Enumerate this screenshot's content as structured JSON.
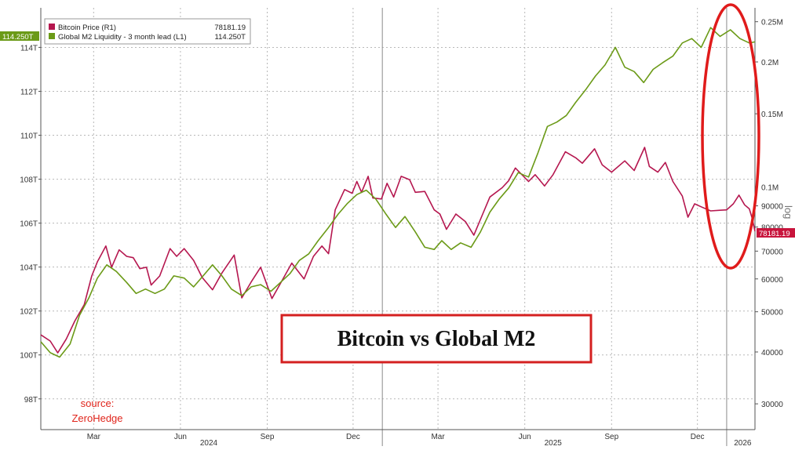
{
  "chart_data": {
    "type": "line",
    "title": "Bitcoin vs Global M2",
    "source_label": "source:",
    "source_name": "ZeroHedge",
    "y_axis_log_label": "log",
    "legend_placement": "top-left",
    "grid": true,
    "left_axis": {
      "ylim": [
        96.6,
        115.8
      ],
      "ticks": [
        "98T",
        "100T",
        "102T",
        "104T",
        "106T",
        "108T",
        "110T",
        "112T",
        "114T"
      ],
      "tick_values": [
        98,
        100,
        102,
        104,
        106,
        108,
        110,
        112,
        114
      ]
    },
    "right_axis": {
      "scale": "log",
      "ylim": [
        26000,
        270000
      ],
      "ticks": [
        "30000",
        "40000",
        "50000",
        "60000",
        "70000",
        "80000",
        "90000",
        "0.1M",
        "0.15M",
        "0.2M",
        "0.25M"
      ],
      "tick_values": [
        30000,
        40000,
        50000,
        60000,
        70000,
        80000,
        90000,
        100000,
        150000,
        200000,
        250000
      ]
    },
    "x_axis": {
      "range": [
        "2024-01-05",
        "2026-01-31"
      ],
      "month_ticks": [
        {
          "label": "Mar",
          "date": "2024-03-01"
        },
        {
          "label": "Jun",
          "date": "2024-06-01"
        },
        {
          "label": "Sep",
          "date": "2024-09-01"
        },
        {
          "label": "Dec",
          "date": "2024-12-01"
        },
        {
          "label": "Mar",
          "date": "2025-03-01"
        },
        {
          "label": "Jun",
          "date": "2025-06-01"
        },
        {
          "label": "Sep",
          "date": "2025-09-01"
        },
        {
          "label": "Dec",
          "date": "2025-12-01"
        }
      ],
      "year_ticks": [
        {
          "label": "2024",
          "date": "2024-07-01"
        },
        {
          "label": "2025",
          "date": "2025-07-01"
        },
        {
          "label": "2026",
          "date": "2026-01-18"
        }
      ],
      "year_dividers": [
        "2025-01-01",
        "2026-01-01"
      ]
    },
    "series": [
      {
        "name": "Bitcoin Price (R1)",
        "last_value": "78181.19",
        "flag": "78181.19",
        "color": "#b5174f",
        "axis": "right",
        "points": [
          [
            "2024-01-05",
            44000
          ],
          [
            "2024-01-15",
            42500
          ],
          [
            "2024-01-23",
            39800
          ],
          [
            "2024-02-01",
            43000
          ],
          [
            "2024-02-10",
            47500
          ],
          [
            "2024-02-20",
            52000
          ],
          [
            "2024-02-28",
            61000
          ],
          [
            "2024-03-05",
            66000
          ],
          [
            "2024-03-14",
            72000
          ],
          [
            "2024-03-20",
            64000
          ],
          [
            "2024-03-28",
            70500
          ],
          [
            "2024-04-05",
            68000
          ],
          [
            "2024-04-12",
            67500
          ],
          [
            "2024-04-19",
            63500
          ],
          [
            "2024-04-26",
            64000
          ],
          [
            "2024-05-01",
            58000
          ],
          [
            "2024-05-10",
            61000
          ],
          [
            "2024-05-21",
            71000
          ],
          [
            "2024-05-28",
            68000
          ],
          [
            "2024-06-05",
            71000
          ],
          [
            "2024-06-15",
            66500
          ],
          [
            "2024-06-24",
            60500
          ],
          [
            "2024-07-05",
            56500
          ],
          [
            "2024-07-15",
            62000
          ],
          [
            "2024-07-28",
            68500
          ],
          [
            "2024-08-05",
            54000
          ],
          [
            "2024-08-15",
            59000
          ],
          [
            "2024-08-25",
            64000
          ],
          [
            "2024-09-06",
            53800
          ],
          [
            "2024-09-15",
            58500
          ],
          [
            "2024-09-27",
            65500
          ],
          [
            "2024-10-10",
            60000
          ],
          [
            "2024-10-20",
            68000
          ],
          [
            "2024-10-29",
            72000
          ],
          [
            "2024-11-05",
            69000
          ],
          [
            "2024-11-12",
            88000
          ],
          [
            "2024-11-22",
            98500
          ],
          [
            "2024-11-30",
            96500
          ],
          [
            "2024-12-05",
            103000
          ],
          [
            "2024-12-10",
            97000
          ],
          [
            "2024-12-17",
            106000
          ],
          [
            "2024-12-22",
            94000
          ],
          [
            "2024-12-31",
            93500
          ],
          [
            "2025-01-06",
            102000
          ],
          [
            "2025-01-13",
            94500
          ],
          [
            "2025-01-21",
            106000
          ],
          [
            "2025-01-30",
            104000
          ],
          [
            "2025-02-05",
            97000
          ],
          [
            "2025-02-15",
            97500
          ],
          [
            "2025-02-25",
            88000
          ],
          [
            "2025-03-03",
            86000
          ],
          [
            "2025-03-10",
            79000
          ],
          [
            "2025-03-20",
            86000
          ],
          [
            "2025-03-30",
            82500
          ],
          [
            "2025-04-08",
            76500
          ],
          [
            "2025-04-16",
            84500
          ],
          [
            "2025-04-25",
            94500
          ],
          [
            "2025-05-08",
            99500
          ],
          [
            "2025-05-15",
            103500
          ],
          [
            "2025-05-22",
            111000
          ],
          [
            "2025-06-05",
            103000
          ],
          [
            "2025-06-12",
            107000
          ],
          [
            "2025-06-22",
            100500
          ],
          [
            "2025-07-01",
            107000
          ],
          [
            "2025-07-14",
            121500
          ],
          [
            "2025-07-25",
            117500
          ],
          [
            "2025-08-01",
            114000
          ],
          [
            "2025-08-14",
            123500
          ],
          [
            "2025-08-22",
            113000
          ],
          [
            "2025-09-01",
            108500
          ],
          [
            "2025-09-15",
            115500
          ],
          [
            "2025-09-25",
            109500
          ],
          [
            "2025-10-06",
            124500
          ],
          [
            "2025-10-11",
            112000
          ],
          [
            "2025-10-20",
            108500
          ],
          [
            "2025-10-28",
            114500
          ],
          [
            "2025-11-05",
            103000
          ],
          [
            "2025-11-15",
            95000
          ],
          [
            "2025-11-21",
            84500
          ],
          [
            "2025-11-28",
            91000
          ],
          [
            "2025-12-05",
            89500
          ],
          [
            "2025-12-15",
            87500
          ],
          [
            "2025-12-25",
            87800
          ],
          [
            "2026-01-01",
            88000
          ],
          [
            "2026-01-08",
            91000
          ],
          [
            "2026-01-14",
            95500
          ],
          [
            "2026-01-20",
            90500
          ],
          [
            "2026-01-25",
            88500
          ],
          [
            "2026-01-28",
            84000
          ],
          [
            "2026-01-31",
            78181
          ]
        ]
      },
      {
        "name": "Global M2 Liquidity - 3 month lead (L1)",
        "last_value": "114.250T",
        "flag": "114.250T",
        "color": "#6b9a17",
        "axis": "left",
        "points": [
          [
            "2024-01-05",
            100.6
          ],
          [
            "2024-01-15",
            100.1
          ],
          [
            "2024-01-25",
            99.9
          ],
          [
            "2024-02-05",
            100.5
          ],
          [
            "2024-02-15",
            101.8
          ],
          [
            "2024-02-25",
            102.6
          ],
          [
            "2024-03-05",
            103.5
          ],
          [
            "2024-03-15",
            104.1
          ],
          [
            "2024-03-25",
            103.8
          ],
          [
            "2024-04-05",
            103.3
          ],
          [
            "2024-04-15",
            102.8
          ],
          [
            "2024-04-25",
            103.0
          ],
          [
            "2024-05-05",
            102.8
          ],
          [
            "2024-05-15",
            103.0
          ],
          [
            "2024-05-25",
            103.6
          ],
          [
            "2024-06-05",
            103.5
          ],
          [
            "2024-06-15",
            103.1
          ],
          [
            "2024-06-25",
            103.6
          ],
          [
            "2024-07-05",
            104.1
          ],
          [
            "2024-07-15",
            103.6
          ],
          [
            "2024-07-25",
            103.0
          ],
          [
            "2024-08-05",
            102.7
          ],
          [
            "2024-08-15",
            103.1
          ],
          [
            "2024-08-25",
            103.2
          ],
          [
            "2024-09-05",
            102.9
          ],
          [
            "2024-09-15",
            103.3
          ],
          [
            "2024-09-25",
            103.7
          ],
          [
            "2024-10-05",
            104.3
          ],
          [
            "2024-10-15",
            104.6
          ],
          [
            "2024-10-25",
            105.2
          ],
          [
            "2024-11-05",
            105.8
          ],
          [
            "2024-11-15",
            106.4
          ],
          [
            "2024-11-25",
            106.9
          ],
          [
            "2024-12-05",
            107.3
          ],
          [
            "2024-12-15",
            107.5
          ],
          [
            "2024-12-25",
            107.1
          ],
          [
            "2025-01-05",
            106.4
          ],
          [
            "2025-01-15",
            105.8
          ],
          [
            "2025-01-25",
            106.3
          ],
          [
            "2025-02-05",
            105.6
          ],
          [
            "2025-02-15",
            104.9
          ],
          [
            "2025-02-25",
            104.8
          ],
          [
            "2025-03-05",
            105.2
          ],
          [
            "2025-03-15",
            104.8
          ],
          [
            "2025-03-25",
            105.1
          ],
          [
            "2025-04-05",
            104.9
          ],
          [
            "2025-04-15",
            105.6
          ],
          [
            "2025-04-25",
            106.5
          ],
          [
            "2025-05-05",
            107.1
          ],
          [
            "2025-05-15",
            107.6
          ],
          [
            "2025-05-25",
            108.3
          ],
          [
            "2025-06-05",
            108.1
          ],
          [
            "2025-06-15",
            109.2
          ],
          [
            "2025-06-25",
            110.4
          ],
          [
            "2025-07-05",
            110.6
          ],
          [
            "2025-07-15",
            110.9
          ],
          [
            "2025-07-25",
            111.5
          ],
          [
            "2025-08-05",
            112.1
          ],
          [
            "2025-08-15",
            112.7
          ],
          [
            "2025-08-25",
            113.2
          ],
          [
            "2025-09-05",
            114.0
          ],
          [
            "2025-09-15",
            113.1
          ],
          [
            "2025-09-25",
            112.9
          ],
          [
            "2025-10-05",
            112.4
          ],
          [
            "2025-10-15",
            113.0
          ],
          [
            "2025-10-25",
            113.3
          ],
          [
            "2025-11-05",
            113.6
          ],
          [
            "2025-11-15",
            114.2
          ],
          [
            "2025-11-25",
            114.4
          ],
          [
            "2025-12-05",
            114.0
          ],
          [
            "2025-12-15",
            114.9
          ],
          [
            "2025-12-25",
            114.5
          ],
          [
            "2026-01-05",
            114.8
          ],
          [
            "2026-01-15",
            114.4
          ],
          [
            "2026-01-25",
            114.2
          ],
          [
            "2026-01-31",
            114.25
          ]
        ]
      }
    ]
  }
}
